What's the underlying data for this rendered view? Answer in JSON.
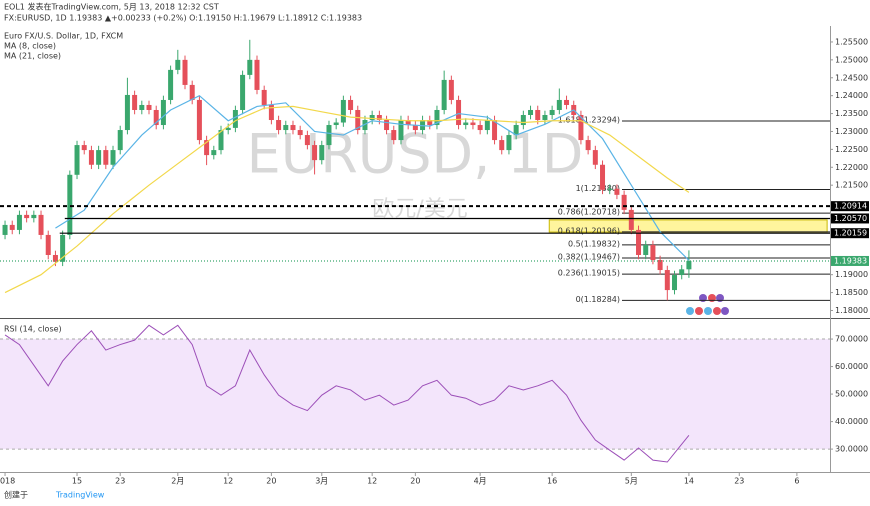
{
  "header": {
    "publisher": "EOL1 发表在TradingView.com, 5月 13, 2018 12:32 CST",
    "symbol_line": "FX:EURUSD, 1D 1.19383 ▲+0.00233 (+0.2%) O:1.19150 H:1.19679 L:1.18912 C:1.19383"
  },
  "footer": {
    "created": "创建于",
    "brand": "TradingView"
  },
  "chart_data": [
    {
      "type": "candlestick",
      "name": "Euro FX/U.S. Dollar, 1D, FXCM",
      "watermark": "EURUSD, 1D",
      "watermark_sub": "欧元/美元",
      "up_color": "#3aa76d",
      "down_color": "#e5505a",
      "grid": false,
      "xlim": [
        -0.7,
        114.6
      ],
      "ylim": [
        1.1779,
        1.2589
      ],
      "yticks": [
        {
          "value": 1.18,
          "label": "1.18000"
        },
        {
          "value": 1.185,
          "label": "1.18500"
        },
        {
          "value": 1.19,
          "label": "1.19000"
        },
        {
          "value": 1.215,
          "label": "1.21500"
        },
        {
          "value": 1.22,
          "label": "1.22000"
        },
        {
          "value": 1.225,
          "label": "1.22500"
        },
        {
          "value": 1.23,
          "label": "1.23000"
        },
        {
          "value": 1.235,
          "label": "1.23500"
        },
        {
          "value": 1.24,
          "label": "1.24000"
        },
        {
          "value": 1.245,
          "label": "1.24500"
        },
        {
          "value": 1.25,
          "label": "1.25000"
        },
        {
          "value": 1.255,
          "label": "1.25500"
        }
      ],
      "x": [
        0,
        1,
        2,
        3,
        4,
        5,
        6,
        7,
        8,
        9,
        10,
        11,
        12,
        13,
        14,
        15,
        16,
        17,
        18,
        19,
        20,
        21,
        22,
        23,
        24,
        25,
        26,
        27,
        28,
        29,
        30,
        31,
        32,
        33,
        34,
        35,
        36,
        37,
        38,
        39,
        40,
        41,
        42,
        43,
        44,
        45,
        46,
        47,
        48,
        49,
        50,
        51,
        52,
        53,
        54,
        55,
        56,
        57,
        58,
        59,
        60,
        61,
        62,
        63,
        64,
        65,
        66,
        67,
        68,
        69,
        70,
        71,
        72,
        73,
        74,
        75,
        76,
        77,
        78,
        79,
        80,
        81,
        82,
        83,
        84,
        85,
        86,
        87,
        88,
        89,
        90,
        91,
        92,
        93,
        94,
        95
      ],
      "open": [
        1.2011,
        1.2039,
        1.2025,
        1.2067,
        1.2058,
        1.2067,
        1.2011,
        1.1955,
        1.1936,
        1.2011,
        1.2179,
        1.2262,
        1.2248,
        1.2207,
        1.2248,
        1.2207,
        1.2248,
        1.2304,
        1.2402,
        1.236,
        1.2374,
        1.236,
        1.2318,
        1.2388,
        1.2472,
        1.25,
        1.243,
        1.2388,
        1.2276,
        1.2234,
        1.2248,
        1.2304,
        1.231,
        1.236,
        1.2458,
        1.25,
        1.2416,
        1.2374,
        1.2332,
        1.2304,
        1.2318,
        1.2304,
        1.229,
        1.2262,
        1.222,
        1.2262,
        1.2318,
        1.2325,
        1.2388,
        1.236,
        1.2304,
        1.2332,
        1.2346,
        1.2332,
        1.2304,
        1.2276,
        1.2332,
        1.2318,
        1.2304,
        1.2332,
        1.2318,
        1.236,
        1.2444,
        1.2388,
        1.2318,
        1.2325,
        1.2318,
        1.2304,
        1.2332,
        1.2276,
        1.2248,
        1.229,
        1.2318,
        1.2346,
        1.236,
        1.2332,
        1.2346,
        1.236,
        1.2388,
        1.2374,
        1.2346,
        1.2276,
        1.2248,
        1.2207,
        1.2137,
        1.214,
        1.2123,
        1.2081,
        1.2025,
        1.1955,
        1.1983,
        1.1941,
        1.1913,
        1.1857,
        1.1899,
        1.1915
      ],
      "high": [
        1.2051,
        1.2051,
        1.2079,
        1.2079,
        1.2079,
        1.2079,
        1.2023,
        1.1967,
        1.2023,
        1.2191,
        1.2274,
        1.2274,
        1.226,
        1.226,
        1.226,
        1.226,
        1.2316,
        1.245,
        1.2414,
        1.2386,
        1.2386,
        1.2372,
        1.24,
        1.2484,
        1.2528,
        1.2512,
        1.2442,
        1.24,
        1.2288,
        1.226,
        1.2316,
        1.2322,
        1.2372,
        1.247,
        1.2556,
        1.2512,
        1.2428,
        1.2386,
        1.2344,
        1.233,
        1.233,
        1.2316,
        1.2302,
        1.2274,
        1.2274,
        1.233,
        1.2337,
        1.24,
        1.24,
        1.2372,
        1.2344,
        1.2358,
        1.2358,
        1.2344,
        1.2316,
        1.2344,
        1.2344,
        1.233,
        1.2344,
        1.2344,
        1.2372,
        1.247,
        1.2456,
        1.24,
        1.2337,
        1.2337,
        1.233,
        1.2344,
        1.2344,
        1.2288,
        1.2302,
        1.233,
        1.2358,
        1.2372,
        1.2372,
        1.2358,
        1.2372,
        1.242,
        1.24,
        1.2386,
        1.2358,
        1.2288,
        1.226,
        1.2219,
        1.2152,
        1.2152,
        1.2135,
        1.2093,
        1.2037,
        1.1995,
        1.1995,
        1.1953,
        1.1925,
        1.1911,
        1.1927,
        1.19679
      ],
      "low": [
        1.1999,
        1.2013,
        1.2013,
        1.2046,
        1.2046,
        1.1999,
        1.1943,
        1.1924,
        1.1924,
        1.1999,
        1.2167,
        1.2236,
        1.2195,
        1.2195,
        1.2195,
        1.2195,
        1.2236,
        1.2292,
        1.2348,
        1.2348,
        1.2348,
        1.2306,
        1.2306,
        1.2376,
        1.246,
        1.2418,
        1.2376,
        1.2264,
        1.2206,
        1.2222,
        1.2236,
        1.2292,
        1.2298,
        1.2348,
        1.2446,
        1.2404,
        1.2362,
        1.232,
        1.2292,
        1.2292,
        1.2292,
        1.2278,
        1.225,
        1.218,
        1.2208,
        1.225,
        1.2306,
        1.2313,
        1.2348,
        1.2292,
        1.2292,
        1.232,
        1.232,
        1.2292,
        1.2264,
        1.2264,
        1.2306,
        1.2292,
        1.2292,
        1.2306,
        1.2306,
        1.2348,
        1.2376,
        1.2306,
        1.2306,
        1.2306,
        1.2292,
        1.2292,
        1.2264,
        1.2236,
        1.2236,
        1.2278,
        1.2306,
        1.2334,
        1.232,
        1.232,
        1.2334,
        1.2348,
        1.2362,
        1.2334,
        1.2264,
        1.2236,
        1.2195,
        1.2125,
        1.2125,
        1.2111,
        1.2069,
        1.2013,
        1.1943,
        1.1943,
        1.1929,
        1.1901,
        1.18284,
        1.1845,
        1.1887,
        1.18912
      ],
      "close": [
        1.2039,
        1.2025,
        1.2067,
        1.2058,
        1.2067,
        1.2011,
        1.1955,
        1.1936,
        1.2011,
        1.2179,
        1.2262,
        1.2248,
        1.2207,
        1.2248,
        1.2207,
        1.2248,
        1.2304,
        1.2402,
        1.236,
        1.2374,
        1.236,
        1.2318,
        1.2388,
        1.2472,
        1.25,
        1.243,
        1.2388,
        1.2276,
        1.2234,
        1.2248,
        1.2304,
        1.231,
        1.236,
        1.2458,
        1.25,
        1.2416,
        1.2374,
        1.2332,
        1.2304,
        1.2318,
        1.2304,
        1.229,
        1.2262,
        1.222,
        1.2262,
        1.2318,
        1.2325,
        1.2388,
        1.236,
        1.2304,
        1.2332,
        1.2346,
        1.2332,
        1.2304,
        1.2276,
        1.2332,
        1.2318,
        1.2304,
        1.2332,
        1.2318,
        1.236,
        1.2444,
        1.2388,
        1.2318,
        1.2325,
        1.2318,
        1.2304,
        1.2332,
        1.2276,
        1.2248,
        1.229,
        1.2318,
        1.2346,
        1.236,
        1.2332,
        1.2346,
        1.236,
        1.2388,
        1.2374,
        1.2346,
        1.2276,
        1.2248,
        1.2207,
        1.2137,
        1.214,
        1.2123,
        1.2081,
        1.2025,
        1.1955,
        1.1983,
        1.1941,
        1.1913,
        1.1857,
        1.1899,
        1.1915,
        1.19383
      ],
      "lines": [
        {
          "name": "MA (8, close)",
          "color": "#5ab4e6",
          "x": [
            7,
            11,
            15,
            19,
            23,
            27,
            31,
            35,
            39,
            43,
            47,
            51,
            55,
            59,
            63,
            67,
            71,
            75,
            79,
            83,
            87,
            91,
            95
          ],
          "values": [
            1.203,
            1.208,
            1.22,
            1.229,
            1.236,
            1.24,
            1.233,
            1.237,
            1.238,
            1.23,
            1.229,
            1.233,
            1.232,
            1.2315,
            1.235,
            1.234,
            1.229,
            1.232,
            1.236,
            1.228,
            1.215,
            1.202,
            1.194
          ]
        },
        {
          "name": "MA (21, close)",
          "color": "#f2d84b",
          "x": [
            0,
            5,
            10,
            15,
            20,
            24,
            28,
            32,
            36,
            40,
            44,
            48,
            52,
            56,
            60,
            64,
            68,
            72,
            76,
            80,
            84,
            88,
            92,
            95
          ],
          "values": [
            1.185,
            1.19,
            1.198,
            1.207,
            1.215,
            1.221,
            1.227,
            1.233,
            1.2365,
            1.237,
            1.2355,
            1.234,
            1.2335,
            1.233,
            1.233,
            1.2335,
            1.233,
            1.2325,
            1.233,
            1.233,
            1.229,
            1.223,
            1.217,
            1.213
          ]
        }
      ],
      "levels": [
        {
          "value": 1.20914,
          "label": "1.20914",
          "from_x": -0.7,
          "style": "dashed",
          "color": "#000000"
        },
        {
          "value": 1.2057,
          "label": "1.20570",
          "from_x": 8.3,
          "style": "solid",
          "color": "#000000"
        },
        {
          "value": 1.20159,
          "label": "1.20159",
          "from_x": 7.6,
          "style": "solid",
          "color": "#000000"
        },
        {
          "value": 1.19383,
          "label": "1.19383",
          "from_x": -0.7,
          "style": "dotted",
          "color": "#3aa76d"
        }
      ],
      "fib_levels": [
        {
          "value": 1.23294,
          "label": "1.618(1.23294)"
        },
        {
          "value": 1.2138,
          "label": "1(1.21380)"
        },
        {
          "value": 1.20718,
          "label": "0.786(1.20718)"
        },
        {
          "value": 1.20196,
          "label": "0.618(1.20196)"
        },
        {
          "value": 1.19832,
          "label": "0.5(1.19832)"
        },
        {
          "value": 1.19467,
          "label": "0.382(1.19467)"
        },
        {
          "value": 1.19015,
          "label": "0.236(1.19015)"
        },
        {
          "value": 1.18284,
          "label": "0(1.18284)"
        }
      ],
      "zone": {
        "x": [
          75.6,
          114.2
        ],
        "y": [
          1.2019,
          1.2053
        ],
        "color": "#fff59d"
      }
    },
    {
      "type": "line",
      "name": "RSI (14, close)",
      "color": "#9c4fb8",
      "band": [
        30,
        70
      ],
      "band_color": "#f3e5fb",
      "xlim": [
        -0.7,
        114.6
      ],
      "ylim": [
        22.4,
        76.2
      ],
      "yticks": [
        {
          "value": 30,
          "label": "30.0000"
        },
        {
          "value": 40,
          "label": "40.0000"
        },
        {
          "value": 50,
          "label": "50.0000"
        },
        {
          "value": 60,
          "label": "60.0000"
        },
        {
          "value": 70,
          "label": "70.0000"
        }
      ],
      "xticks": [
        {
          "value": 0,
          "label": "2018"
        },
        {
          "value": 10,
          "label": "15"
        },
        {
          "value": 16,
          "label": "23"
        },
        {
          "value": 24,
          "label": "2月"
        },
        {
          "value": 31,
          "label": "12"
        },
        {
          "value": 37,
          "label": "20"
        },
        {
          "value": 44,
          "label": "3月"
        },
        {
          "value": 51,
          "label": "12"
        },
        {
          "value": 57,
          "label": "20"
        },
        {
          "value": 66,
          "label": "4月"
        },
        {
          "value": 76,
          "label": "16"
        },
        {
          "value": 87,
          "label": "5月"
        },
        {
          "value": 95,
          "label": "14"
        },
        {
          "value": 102,
          "label": "23"
        },
        {
          "value": 110,
          "label": "6"
        }
      ],
      "x": [
        0,
        2,
        4,
        6,
        8,
        10,
        12,
        14,
        16,
        18,
        20,
        22,
        24,
        26,
        28,
        30,
        32,
        34,
        36,
        38,
        40,
        42,
        44,
        46,
        48,
        50,
        52,
        54,
        56,
        58,
        60,
        62,
        64,
        66,
        68,
        70,
        72,
        74,
        76,
        78,
        80,
        82,
        84,
        86,
        88,
        90,
        92,
        95
      ],
      "values": [
        71.5,
        68,
        60.5,
        53,
        62,
        68,
        73,
        66,
        68,
        69.6,
        75,
        71.5,
        75,
        68,
        53,
        49.6,
        53,
        66,
        57,
        49.6,
        46,
        44,
        49.6,
        53,
        51.5,
        47.8,
        49.6,
        46,
        47.8,
        53,
        55,
        49.6,
        48.5,
        46,
        47.8,
        53,
        51.5,
        53,
        55,
        49.6,
        40.5,
        33.3,
        29.6,
        26,
        30.4,
        26,
        25.3,
        35
      ]
    }
  ]
}
